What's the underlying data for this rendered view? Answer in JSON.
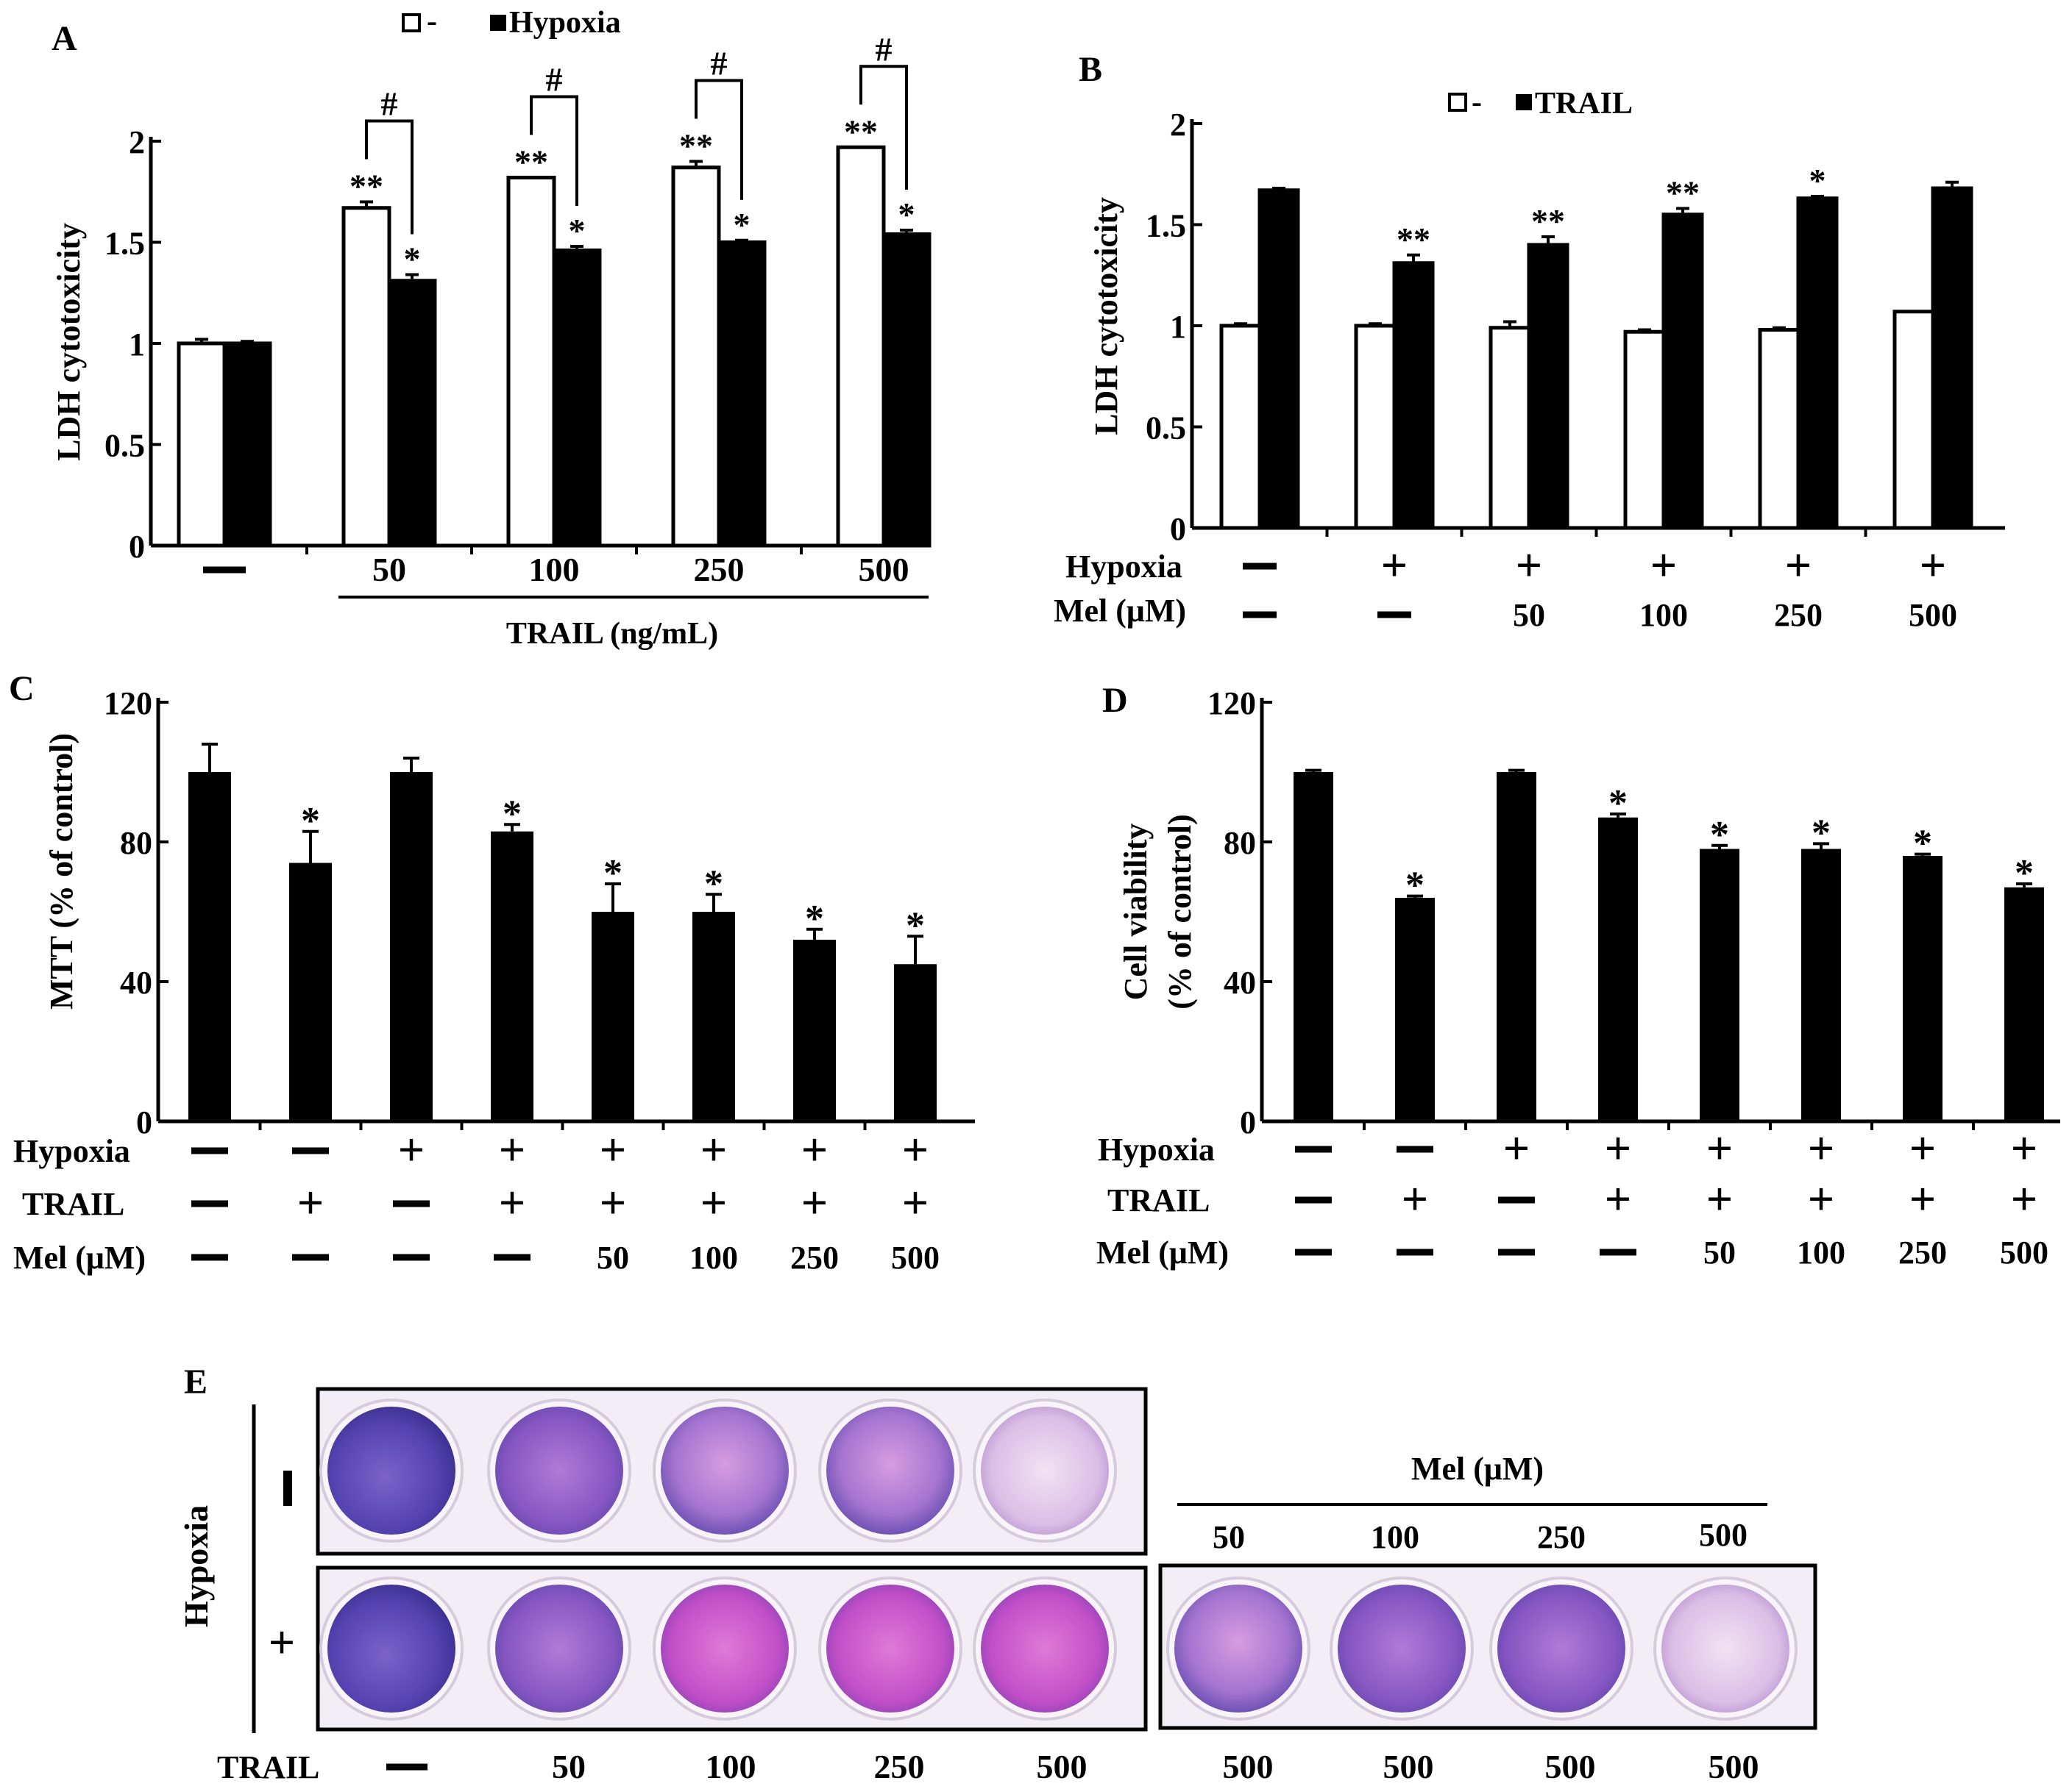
{
  "chart_data": [
    {
      "panel": "A",
      "type": "bar",
      "ylabel": "LDH cytotoxicity",
      "ylim": [
        0,
        2
      ],
      "yticks": [
        "0",
        "0.5",
        "1",
        "1.5",
        "2"
      ],
      "legend": [
        "-",
        "Hypoxia"
      ],
      "categories": [
        "—",
        "50",
        "100",
        "250",
        "500"
      ],
      "group_label": "TRAIL (ng/mL)",
      "series": [
        {
          "name": "-",
          "values": [
            1.0,
            1.67,
            1.82,
            1.87,
            1.97
          ],
          "errors": [
            0.02,
            0.03,
            0.0,
            0.03,
            0.0
          ],
          "labels": [
            "",
            "**",
            "**",
            "**",
            "**"
          ]
        },
        {
          "name": "Hypoxia",
          "values": [
            1.0,
            1.31,
            1.46,
            1.5,
            1.54
          ],
          "errors": [
            0.01,
            0.03,
            0.02,
            0.01,
            0.02
          ],
          "labels": [
            "",
            "*",
            "*",
            "*",
            "*"
          ]
        }
      ],
      "brackets": [
        "#",
        "#",
        "#",
        "#"
      ]
    },
    {
      "panel": "B",
      "type": "bar",
      "ylabel": "LDH cytotoxicity",
      "ylim": [
        0,
        2
      ],
      "yticks": [
        "0",
        "0.5",
        "1",
        "1.5",
        "2"
      ],
      "legend": [
        "-",
        "TRAIL"
      ],
      "row_headers": [
        "Hypoxia",
        "Mel (μM)"
      ],
      "rows": [
        [
          "—",
          "+",
          "+",
          "+",
          "+",
          "+"
        ],
        [
          "—",
          "—",
          "50",
          "100",
          "250",
          "500"
        ]
      ],
      "series": [
        {
          "name": "-",
          "values": [
            1.0,
            1.0,
            0.99,
            0.97,
            0.98,
            1.07
          ],
          "errors": [
            0.01,
            0.01,
            0.03,
            0.01,
            0.01,
            0.0
          ],
          "labels": [
            "",
            "",
            "",
            "",
            "",
            ""
          ]
        },
        {
          "name": "TRAIL",
          "values": [
            1.67,
            1.31,
            1.4,
            1.55,
            1.63,
            1.68
          ],
          "errors": [
            0.01,
            0.04,
            0.04,
            0.03,
            0.01,
            0.03
          ],
          "labels": [
            "",
            "**",
            "**",
            "**",
            "*",
            ""
          ]
        }
      ]
    },
    {
      "panel": "C",
      "type": "bar",
      "ylabel": "MTT (% of control)",
      "ylim": [
        0,
        120
      ],
      "yticks": [
        "0",
        "40",
        "80",
        "120"
      ],
      "row_headers": [
        "Hypoxia",
        "TRAIL",
        "Mel (μM)"
      ],
      "rows": [
        [
          "—",
          "—",
          "+",
          "+",
          "+",
          "+",
          "+",
          "+"
        ],
        [
          "—",
          "+",
          "—",
          "+",
          "+",
          "+",
          "+",
          "+"
        ],
        [
          "—",
          "—",
          "—",
          "—",
          "50",
          "100",
          "250",
          "500"
        ]
      ],
      "values": [
        100,
        74,
        100,
        83,
        60,
        60,
        52,
        45
      ],
      "errors": [
        8,
        9,
        4,
        2,
        8,
        5,
        3,
        8
      ],
      "labels": [
        "",
        "*",
        "",
        "*",
        "*",
        "*",
        "*",
        "*"
      ]
    },
    {
      "panel": "D",
      "type": "bar",
      "ylabel": "Cell viability",
      "ylabel2": "(% of control)",
      "ylim": [
        0,
        120
      ],
      "yticks": [
        "0",
        "40",
        "80",
        "120"
      ],
      "row_headers": [
        "Hypoxia",
        "TRAIL",
        "Mel (μM)"
      ],
      "rows": [
        [
          "—",
          "—",
          "+",
          "+",
          "+",
          "+",
          "+",
          "+"
        ],
        [
          "—",
          "+",
          "—",
          "+",
          "+",
          "+",
          "+",
          "+"
        ],
        [
          "—",
          "—",
          "—",
          "—",
          "50",
          "100",
          "250",
          "500"
        ]
      ],
      "values": [
        100,
        64,
        100,
        87,
        78,
        78,
        76,
        67
      ],
      "errors": [
        0.5,
        0.5,
        0.5,
        1,
        1,
        1.5,
        0.5,
        1
      ],
      "labels": [
        "",
        "*",
        "",
        "*",
        "*",
        "*",
        "*",
        "*"
      ]
    }
  ],
  "panelE": {
    "letter": "E",
    "hypoxia_label": "Hypoxia",
    "row_minus": "-",
    "row_plus": "+",
    "mel_label": "Mel (μM)",
    "mel_doses": [
      "50",
      "100",
      "250",
      "500"
    ],
    "trail_label": "TRAIL",
    "trail_doses": [
      "—",
      "50",
      "100",
      "250",
      "500",
      "500",
      "500",
      "500",
      "500"
    ],
    "colors": {
      "strong": "#4b3aa8",
      "medium": "#8a4fc4",
      "pink": "#c86ad0",
      "pale": "#e3c6ea"
    }
  }
}
